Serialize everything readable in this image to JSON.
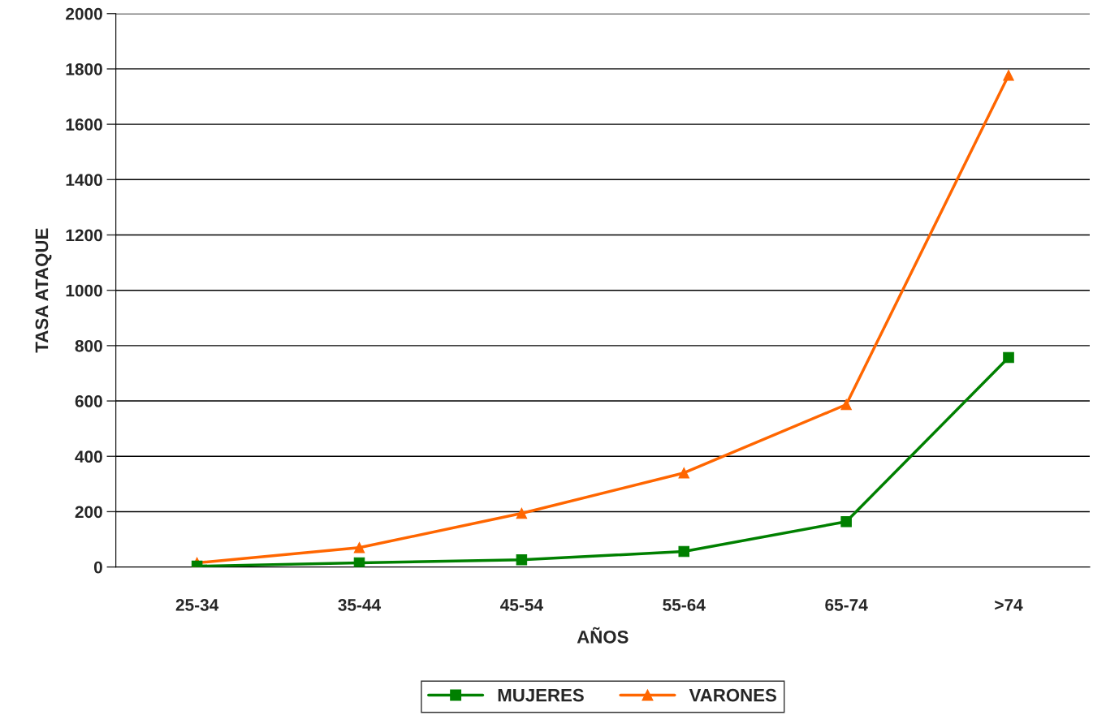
{
  "chart_data": {
    "type": "line",
    "xlabel": "AÑOS",
    "ylabel": "TASA ATAQUE",
    "categories": [
      "25-34",
      "35-44",
      "45-54",
      "55-64",
      "65-74",
      ">74"
    ],
    "series": [
      {
        "name": "MUJERES",
        "color": "#008000",
        "marker": "square",
        "values": [
          3,
          15,
          26,
          56,
          164,
          757
        ]
      },
      {
        "name": "VARONES",
        "color": "#ff6600",
        "marker": "triangle",
        "values": [
          15,
          70,
          194,
          340,
          587,
          1777
        ]
      }
    ],
    "ylim": [
      0,
      2000
    ],
    "yticks": [
      0,
      200,
      400,
      600,
      800,
      1000,
      1200,
      1400,
      1600,
      1800,
      2000
    ],
    "grid": "y",
    "legend": "bottom"
  }
}
